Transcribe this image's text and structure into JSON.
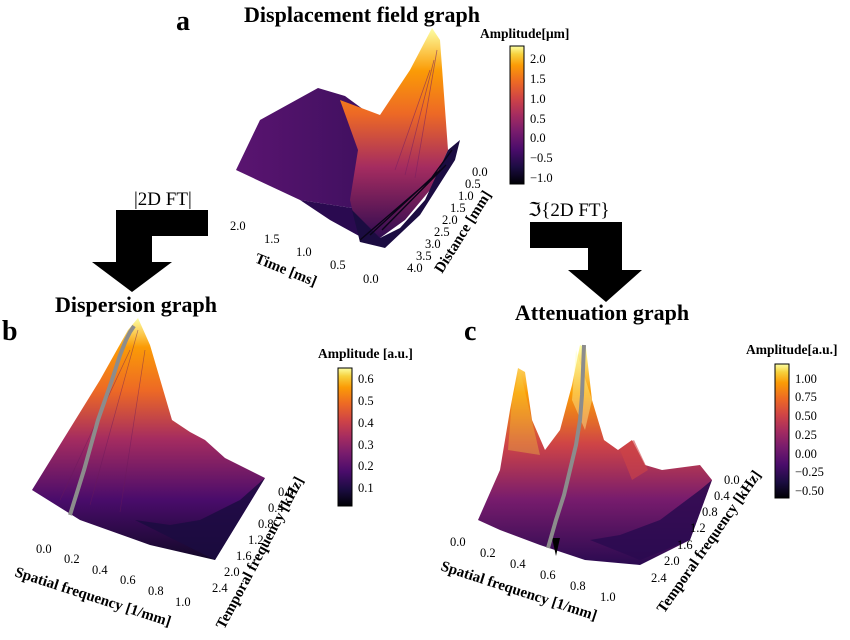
{
  "panels": {
    "a": {
      "letter": "a",
      "title": "Displacement field graph",
      "colorbar": {
        "title": "Amplitude[μm]",
        "ticks": [
          "2.0",
          "1.5",
          "1.0",
          "0.5",
          "0.0",
          "−0.5",
          "−1.0"
        ]
      },
      "x_axis": {
        "label": "Time [ms]",
        "ticks": [
          "2.0",
          "1.5",
          "1.0",
          "0.5",
          "0.0"
        ]
      },
      "y_axis": {
        "label": "Distance [mm]",
        "ticks": [
          "0.0",
          "0.5",
          "1.0",
          "1.5",
          "2.0",
          "2.5",
          "3.0",
          "3.5",
          "4.0"
        ]
      }
    },
    "b": {
      "letter": "b",
      "title": "Dispersion graph",
      "colorbar": {
        "title": "Amplitude [a.u.]",
        "ticks": [
          "0.6",
          "0.5",
          "0.4",
          "0.3",
          "0.2",
          "0.1"
        ]
      },
      "x_axis": {
        "label": "Spatial frequency [1/mm]",
        "ticks": [
          "0.0",
          "0.2",
          "0.4",
          "0.6",
          "0.8",
          "1.0"
        ]
      },
      "y_axis": {
        "label": "Temporal frequency [kHz]",
        "ticks": [
          "0.0",
          "0.4",
          "0.8",
          "1.2",
          "1.6",
          "2.0",
          "2.4"
        ]
      }
    },
    "c": {
      "letter": "c",
      "title": "Attenuation graph",
      "colorbar": {
        "title": "Amplitude[a.u.]",
        "ticks": [
          "1.00",
          "0.75",
          "0.50",
          "0.25",
          "0.00",
          "−0.25",
          "−0.50"
        ]
      },
      "x_axis": {
        "label": "Spatial frequency [1/mm]",
        "ticks": [
          "0.0",
          "0.2",
          "0.4",
          "0.6",
          "0.8",
          "1.0"
        ]
      },
      "y_axis": {
        "label": "Temporal frequency [kHz]",
        "ticks": [
          "0.0",
          "0.4",
          "0.8",
          "1.2",
          "1.6",
          "2.0",
          "2.4"
        ]
      }
    }
  },
  "operations": {
    "left": "|2D FT|",
    "right": "ℑ{2D FT}"
  },
  "colors": {
    "inferno": [
      "#000004",
      "#1b0c41",
      "#4a0c6b",
      "#781c6d",
      "#a52c60",
      "#cf4446",
      "#ed6925",
      "#fb9b06",
      "#f7d13d",
      "#fcffa4"
    ],
    "ridge": "#8c8c8c",
    "arrow": "#000000"
  }
}
